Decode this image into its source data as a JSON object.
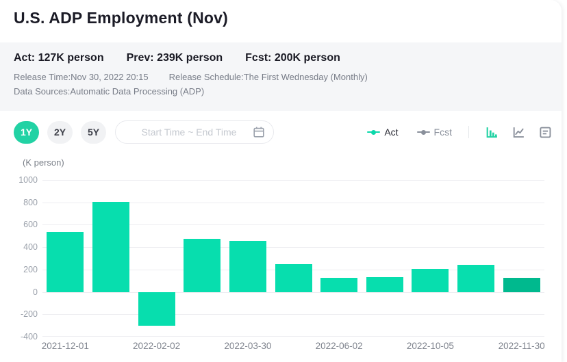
{
  "header": {
    "title": "U.S. ADP Employment (Nov)"
  },
  "stats": [
    {
      "label": "Act:",
      "value": "127K person"
    },
    {
      "label": "Prev:",
      "value": "239K person"
    },
    {
      "label": "Fcst:",
      "value": "200K person"
    }
  ],
  "meta": {
    "release_time": "Release Time:Nov 30, 2022 20:15",
    "release_schedule": "Release Schedule:The First Wednesday (Monthly)",
    "data_sources": "Data Sources:Automatic Data Processing (ADP)"
  },
  "controls": {
    "range_buttons": [
      {
        "label": "1Y",
        "active": true
      },
      {
        "label": "2Y",
        "active": false
      },
      {
        "label": "5Y",
        "active": false
      }
    ],
    "date_range_placeholder": "Start Time ~ End Time",
    "legend": [
      {
        "label": "Act",
        "color": "#0bd8ab"
      },
      {
        "label": "Fcst",
        "color": "#8a909b"
      }
    ],
    "view_buttons": [
      "bar-chart",
      "line-chart",
      "data-table"
    ],
    "active_view": "bar-chart"
  },
  "colors": {
    "accent": "#22d2a4",
    "bar": "#07deae",
    "bar_latest": "#00b98e",
    "grid": "#ededf1",
    "panel_bg": "#f5f6f8"
  },
  "chart_data": {
    "type": "bar",
    "title": "U.S. ADP Employment (Nov)",
    "ylabel": "(K person)",
    "ylim": [
      -400,
      1000
    ],
    "y_ticks": [
      1000,
      800,
      600,
      400,
      200,
      0,
      -200,
      -400
    ],
    "grid": true,
    "legend_position": "top-right",
    "x_tick_labels": [
      "2021-12-01",
      "2022-02-02",
      "2022-03-30",
      "2022-06-02",
      "2022-10-05",
      "2022-11-30"
    ],
    "x_tick_under_every_other_bar": true,
    "series": [
      {
        "name": "Act",
        "values": [
          534,
          807,
          -301,
          475,
          455,
          247,
          128,
          132,
          208,
          239,
          127
        ]
      }
    ]
  }
}
